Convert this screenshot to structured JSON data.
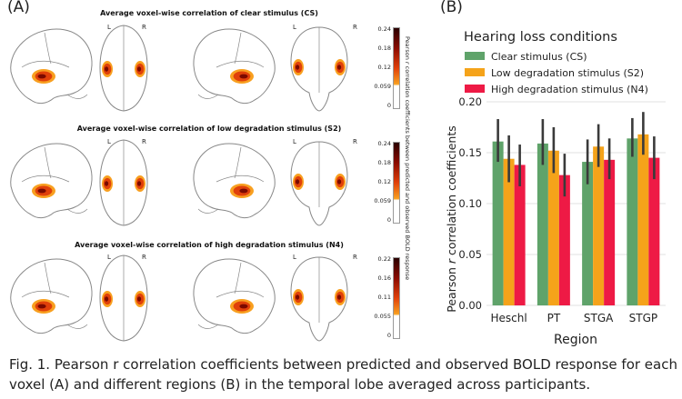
{
  "panel_a": {
    "label": "(A)",
    "rows": [
      {
        "title": "Average voxel-wise correlation of clear stimulus (CS)",
        "ticks": [
          "0.24",
          "0.18",
          "0.12",
          "0.059",
          "0"
        ]
      },
      {
        "title": "Average voxel-wise correlation of low degradation stimulus (S2)",
        "ticks": [
          "0.24",
          "0.18",
          "0.12",
          "0.059",
          "0"
        ]
      },
      {
        "title": "Average voxel-wise correlation of high degradation stimulus (N4)",
        "ticks": [
          "0.22",
          "0.16",
          "0.11",
          "0.055",
          "0"
        ]
      }
    ],
    "left_marker": "L",
    "right_marker": "R",
    "colorbar_label_part1": "Pearson ",
    "colorbar_label_r": "r",
    "colorbar_label_part2": " correlation coefficients between predicted and observed BOLD response",
    "colors": {
      "hot_dark": "#7a0a00",
      "hot_mid": "#e0400a",
      "hot_light": "#f8a020",
      "outline": "#888888"
    }
  },
  "panel_b": {
    "label": "(B)",
    "legend_title": "Hearing loss conditions",
    "ylabel_part1": "Pearson ",
    "ylabel_r": "r",
    "ylabel_part2": " correlation coefficients",
    "xlabel": "Region"
  },
  "chart_data": {
    "type": "bar",
    "categories": [
      "Heschl",
      "PT",
      "STGA",
      "STGP"
    ],
    "ylim": [
      0.0,
      0.2
    ],
    "yticks": [
      "0.00",
      "0.05",
      "0.10",
      "0.15",
      "0.20"
    ],
    "grid": true,
    "legend_position": "top",
    "series": [
      {
        "name": "Clear stimulus (CS)",
        "color": "#5fa36a",
        "values": [
          0.161,
          0.159,
          0.141,
          0.164
        ],
        "error": [
          [
            0.141,
            0.183
          ],
          [
            0.138,
            0.183
          ],
          [
            0.119,
            0.163
          ],
          [
            0.146,
            0.184
          ]
        ]
      },
      {
        "name": "Low degradation stimulus (S2)",
        "color": "#f5a31a",
        "values": [
          0.144,
          0.152,
          0.156,
          0.168
        ],
        "error": [
          [
            0.121,
            0.167
          ],
          [
            0.13,
            0.175
          ],
          [
            0.136,
            0.178
          ],
          [
            0.148,
            0.19
          ]
        ]
      },
      {
        "name": "High degradation stimulus (N4)",
        "color": "#ee1a45",
        "values": [
          0.138,
          0.128,
          0.143,
          0.145
        ],
        "error": [
          [
            0.117,
            0.158
          ],
          [
            0.107,
            0.149
          ],
          [
            0.124,
            0.164
          ],
          [
            0.124,
            0.166
          ]
        ]
      }
    ]
  },
  "caption": "Fig. 1. Pearson r correlation coefficients between predicted and observed BOLD response for each voxel (A) and different regions (B) in the temporal lobe averaged across participants."
}
